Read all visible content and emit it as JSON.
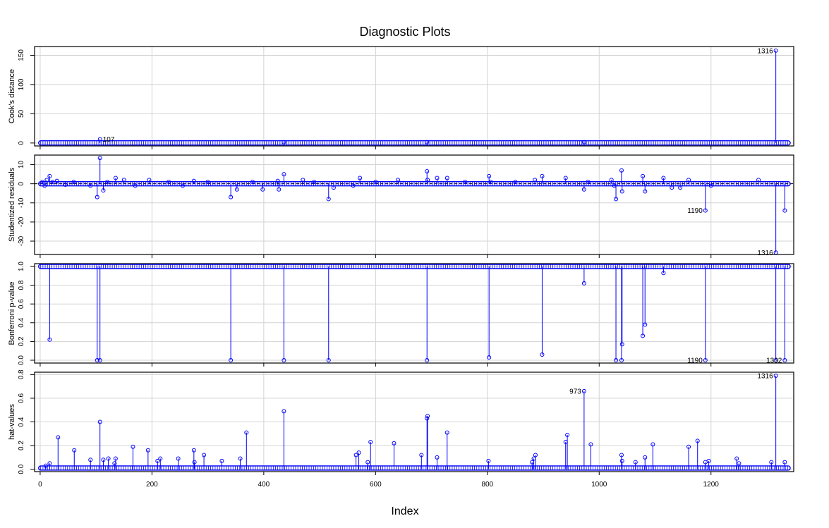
{
  "title": "Diagnostic Plots",
  "xlabel": "Index",
  "chart_data": [
    {
      "type": "scatter",
      "ylabel": "Cook's distance",
      "xlim": [
        -10,
        1348
      ],
      "ylim": [
        -5,
        165
      ],
      "xticks": [
        0,
        200,
        400,
        600,
        800,
        1000,
        1200
      ],
      "yticks": [
        "0",
        "50",
        "100",
        "150"
      ],
      "baseline": 0,
      "bulk": {
        "x": [
          1,
          1338
        ],
        "y": 0.2
      },
      "points": [
        {
          "x": 107,
          "y": 6.5,
          "label": "107"
        },
        {
          "x": 436,
          "y": 1.5
        },
        {
          "x": 692,
          "y": 1.5
        },
        {
          "x": 973,
          "y": 1.5
        },
        {
          "x": 1316,
          "y": 158,
          "label": "1316"
        }
      ]
    },
    {
      "type": "scatter",
      "ylabel": "Studentized residuals",
      "xlim": [
        -10,
        1348
      ],
      "ylim": [
        -37,
        15
      ],
      "xticks": [
        0,
        200,
        400,
        600,
        800,
        1000,
        1200
      ],
      "yticks": [
        "-30",
        "-20",
        "-10",
        "0",
        "10"
      ],
      "baseline": 0,
      "reference_line": 0,
      "bulk": {
        "x": [
          1,
          1338
        ],
        "y": 0
      },
      "points": [
        {
          "x": 4,
          "y": 1
        },
        {
          "x": 8,
          "y": -1
        },
        {
          "x": 12,
          "y": 2
        },
        {
          "x": 17,
          "y": 4
        },
        {
          "x": 22,
          "y": 1
        },
        {
          "x": 30,
          "y": 1.5
        },
        {
          "x": 45,
          "y": -0.5
        },
        {
          "x": 60,
          "y": 1
        },
        {
          "x": 90,
          "y": -1
        },
        {
          "x": 102,
          "y": -7
        },
        {
          "x": 107,
          "y": 13.5
        },
        {
          "x": 113,
          "y": -3.5
        },
        {
          "x": 120,
          "y": 1
        },
        {
          "x": 135,
          "y": 3
        },
        {
          "x": 150,
          "y": 2
        },
        {
          "x": 170,
          "y": -1
        },
        {
          "x": 195,
          "y": 2
        },
        {
          "x": 230,
          "y": 1
        },
        {
          "x": 255,
          "y": -1
        },
        {
          "x": 275,
          "y": 1.5
        },
        {
          "x": 300,
          "y": 1
        },
        {
          "x": 341,
          "y": -7
        },
        {
          "x": 352,
          "y": -3
        },
        {
          "x": 380,
          "y": 1
        },
        {
          "x": 398,
          "y": -3
        },
        {
          "x": 425,
          "y": 1.5
        },
        {
          "x": 427,
          "y": -3
        },
        {
          "x": 436,
          "y": 5
        },
        {
          "x": 470,
          "y": 2
        },
        {
          "x": 490,
          "y": 1
        },
        {
          "x": 516,
          "y": -8
        },
        {
          "x": 525,
          "y": -2
        },
        {
          "x": 560,
          "y": -1
        },
        {
          "x": 572,
          "y": 3
        },
        {
          "x": 600,
          "y": 1
        },
        {
          "x": 640,
          "y": 2
        },
        {
          "x": 692,
          "y": 6.5
        },
        {
          "x": 693,
          "y": 2
        },
        {
          "x": 710,
          "y": 3
        },
        {
          "x": 728,
          "y": 3
        },
        {
          "x": 760,
          "y": 1
        },
        {
          "x": 803,
          "y": 4
        },
        {
          "x": 806,
          "y": 1
        },
        {
          "x": 850,
          "y": 1
        },
        {
          "x": 885,
          "y": 2
        },
        {
          "x": 898,
          "y": 4
        },
        {
          "x": 940,
          "y": 3
        },
        {
          "x": 973,
          "y": -3
        },
        {
          "x": 980,
          "y": 1
        },
        {
          "x": 1022,
          "y": 2
        },
        {
          "x": 1027,
          "y": -1
        },
        {
          "x": 1030,
          "y": -8
        },
        {
          "x": 1040,
          "y": 7
        },
        {
          "x": 1041,
          "y": -4
        },
        {
          "x": 1078,
          "y": 4
        },
        {
          "x": 1082,
          "y": -4
        },
        {
          "x": 1115,
          "y": 3
        },
        {
          "x": 1130,
          "y": -2
        },
        {
          "x": 1145,
          "y": -2
        },
        {
          "x": 1160,
          "y": 2
        },
        {
          "x": 1190,
          "y": -14,
          "label": "1190"
        },
        {
          "x": 1200,
          "y": -1
        },
        {
          "x": 1285,
          "y": 2
        },
        {
          "x": 1316,
          "y": -36,
          "label": "1316"
        },
        {
          "x": 1332,
          "y": -14
        }
      ]
    },
    {
      "type": "scatter",
      "ylabel": "Bonferroni p-value",
      "xlim": [
        -10,
        1348
      ],
      "ylim": [
        -0.03,
        1.03
      ],
      "xticks": [
        0,
        200,
        400,
        600,
        800,
        1000,
        1200
      ],
      "yticks": [
        "0.0",
        "0.2",
        "0.4",
        "0.6",
        "0.8",
        "1.0"
      ],
      "baseline": 1,
      "bulk": {
        "x": [
          1,
          1338
        ],
        "y": 1
      },
      "points": [
        {
          "x": 17,
          "y": 0.22
        },
        {
          "x": 102,
          "y": 0
        },
        {
          "x": 107,
          "y": 0
        },
        {
          "x": 341,
          "y": 0
        },
        {
          "x": 436,
          "y": 0
        },
        {
          "x": 516,
          "y": 0
        },
        {
          "x": 692,
          "y": 0
        },
        {
          "x": 803,
          "y": 0.03
        },
        {
          "x": 898,
          "y": 0.06
        },
        {
          "x": 973,
          "y": 0.82
        },
        {
          "x": 1030,
          "y": 0
        },
        {
          "x": 1040,
          "y": 0
        },
        {
          "x": 1041,
          "y": 0.17
        },
        {
          "x": 1078,
          "y": 0.26
        },
        {
          "x": 1082,
          "y": 0.38
        },
        {
          "x": 1115,
          "y": 0.93
        },
        {
          "x": 1190,
          "y": 0,
          "label": "1190"
        },
        {
          "x": 1316,
          "y": 0
        },
        {
          "x": 1332,
          "y": 0,
          "label": "1332"
        }
      ]
    },
    {
      "type": "scatter",
      "ylabel": "hat-values",
      "xlim": [
        -10,
        1348
      ],
      "ylim": [
        -0.02,
        0.82
      ],
      "xticks": [
        0,
        200,
        400,
        600,
        800,
        1000,
        1200
      ],
      "yticks": [
        "0.0",
        "0.2",
        "0.4",
        "0.6",
        "0.8"
      ],
      "xtick_labels": [
        "0",
        "200",
        "400",
        "600",
        "800",
        "1000",
        "1200"
      ],
      "baseline": 0,
      "bulk": {
        "x": [
          1,
          1338
        ],
        "y": 0.01
      },
      "points": [
        {
          "x": 10,
          "y": 0.03
        },
        {
          "x": 17,
          "y": 0.05
        },
        {
          "x": 32,
          "y": 0.27
        },
        {
          "x": 61,
          "y": 0.16
        },
        {
          "x": 90,
          "y": 0.08
        },
        {
          "x": 107,
          "y": 0.4
        },
        {
          "x": 113,
          "y": 0.08
        },
        {
          "x": 122,
          "y": 0.09
        },
        {
          "x": 135,
          "y": 0.09
        },
        {
          "x": 133,
          "y": 0.05
        },
        {
          "x": 166,
          "y": 0.19
        },
        {
          "x": 193,
          "y": 0.16
        },
        {
          "x": 210,
          "y": 0.07
        },
        {
          "x": 215,
          "y": 0.09
        },
        {
          "x": 247,
          "y": 0.09
        },
        {
          "x": 275,
          "y": 0.16
        },
        {
          "x": 276,
          "y": 0.06
        },
        {
          "x": 293,
          "y": 0.12
        },
        {
          "x": 325,
          "y": 0.07
        },
        {
          "x": 358,
          "y": 0.09
        },
        {
          "x": 369,
          "y": 0.31
        },
        {
          "x": 436,
          "y": 0.49
        },
        {
          "x": 565,
          "y": 0.12
        },
        {
          "x": 570,
          "y": 0.14
        },
        {
          "x": 586,
          "y": 0.06
        },
        {
          "x": 591,
          "y": 0.23
        },
        {
          "x": 633,
          "y": 0.22
        },
        {
          "x": 682,
          "y": 0.12
        },
        {
          "x": 692,
          "y": 0.43
        },
        {
          "x": 693,
          "y": 0.45
        },
        {
          "x": 710,
          "y": 0.1
        },
        {
          "x": 728,
          "y": 0.31
        },
        {
          "x": 802,
          "y": 0.07
        },
        {
          "x": 880,
          "y": 0.06
        },
        {
          "x": 883,
          "y": 0.09
        },
        {
          "x": 886,
          "y": 0.12
        },
        {
          "x": 940,
          "y": 0.23
        },
        {
          "x": 943,
          "y": 0.29
        },
        {
          "x": 973,
          "y": 0.66,
          "label": "973"
        },
        {
          "x": 985,
          "y": 0.21
        },
        {
          "x": 1040,
          "y": 0.12
        },
        {
          "x": 1041,
          "y": 0.07
        },
        {
          "x": 1065,
          "y": 0.06
        },
        {
          "x": 1082,
          "y": 0.1
        },
        {
          "x": 1096,
          "y": 0.21
        },
        {
          "x": 1160,
          "y": 0.19
        },
        {
          "x": 1176,
          "y": 0.24
        },
        {
          "x": 1190,
          "y": 0.06
        },
        {
          "x": 1196,
          "y": 0.07
        },
        {
          "x": 1246,
          "y": 0.09
        },
        {
          "x": 1250,
          "y": 0.05
        },
        {
          "x": 1308,
          "y": 0.06
        },
        {
          "x": 1316,
          "y": 0.79,
          "label": "1316"
        },
        {
          "x": 1332,
          "y": 0.06
        }
      ]
    }
  ]
}
